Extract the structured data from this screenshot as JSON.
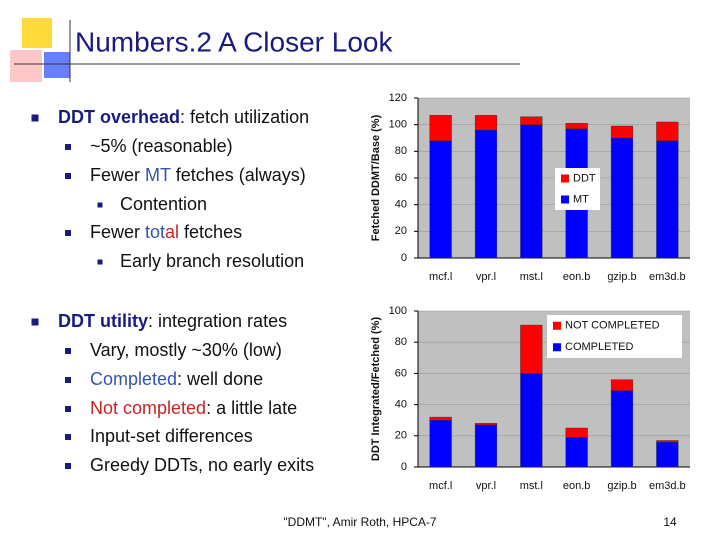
{
  "title": "Numbers.2  A Closer Look",
  "bullets": [
    {
      "level": 0,
      "segments": [
        {
          "text": "DDT overhead",
          "color": "#1a1a80",
          "bold": true
        },
        {
          "text": ": fetch utilization"
        }
      ]
    },
    {
      "level": 1,
      "segments": [
        {
          "text": "~5% (reasonable)"
        }
      ]
    },
    {
      "level": 1,
      "segments": [
        {
          "text": "Fewer "
        },
        {
          "text": "MT",
          "color": "#3355aa"
        },
        {
          "text": " fetches (always)"
        }
      ]
    },
    {
      "level": 2,
      "segments": [
        {
          "text": "Contention"
        }
      ]
    },
    {
      "level": 1,
      "segments": [
        {
          "text": "Fewer "
        },
        {
          "text": "tot",
          "color": "#3355aa"
        },
        {
          "text": "al",
          "color": "#cc2222"
        },
        {
          "text": " fetches"
        }
      ]
    },
    {
      "level": 2,
      "segments": [
        {
          "text": "Early branch resolution"
        }
      ]
    },
    {
      "level": 0,
      "segments": [
        {
          "text": "DDT utility",
          "color": "#1a1a80",
          "bold": true
        },
        {
          "text": ": integration rates"
        }
      ]
    },
    {
      "level": 1,
      "segments": [
        {
          "text": "Vary, mostly ~30% (low)"
        }
      ]
    },
    {
      "level": 1,
      "segments": [
        {
          "text": "Completed",
          "color": "#3355aa"
        },
        {
          "text": ": well done"
        }
      ]
    },
    {
      "level": 1,
      "segments": [
        {
          "text": "Not completed",
          "color": "#cc2222"
        },
        {
          "text": ": a little late"
        }
      ]
    },
    {
      "level": 1,
      "segments": [
        {
          "text": "Input-set differences"
        }
      ]
    },
    {
      "level": 1,
      "segments": [
        {
          "text": "Greedy DDTs, no early exits"
        }
      ]
    }
  ],
  "footer": "\"DDMT\", Amir Roth, HPCA-7",
  "page_number": "14",
  "chart_data": [
    {
      "type": "bar",
      "stacked": true,
      "ylabel": "Fetched DDMT/Base (%)",
      "categories": [
        "mcf.l",
        "vpr.l",
        "mst.l",
        "eon.b",
        "gzip.b",
        "em3d.b"
      ],
      "series": [
        {
          "name": "MT",
          "color": "#0000ff",
          "values": [
            88,
            96,
            100,
            97,
            90,
            88
          ]
        },
        {
          "name": "DDT",
          "color": "#ff0000",
          "values": [
            19,
            11,
            6,
            4,
            9,
            14
          ]
        }
      ],
      "ylim": [
        0,
        120
      ],
      "yticks": [
        0,
        20,
        40,
        60,
        80,
        100,
        120
      ]
    },
    {
      "type": "bar",
      "stacked": true,
      "ylabel": "DDT Integrated/Fetched (%)",
      "categories": [
        "mcf.l",
        "vpr.l",
        "mst.l",
        "eon.b",
        "gzip.b",
        "em3d.b"
      ],
      "series": [
        {
          "name": "COMPLETED",
          "color": "#0000ff",
          "values": [
            30,
            27,
            60,
            19,
            49,
            16
          ]
        },
        {
          "name": "NOT COMPLETED",
          "color": "#ff0000",
          "values": [
            2,
            1,
            31,
            6,
            7,
            1
          ]
        }
      ],
      "ylim": [
        0,
        100
      ],
      "yticks": [
        0,
        20,
        40,
        60,
        80,
        100
      ]
    }
  ]
}
